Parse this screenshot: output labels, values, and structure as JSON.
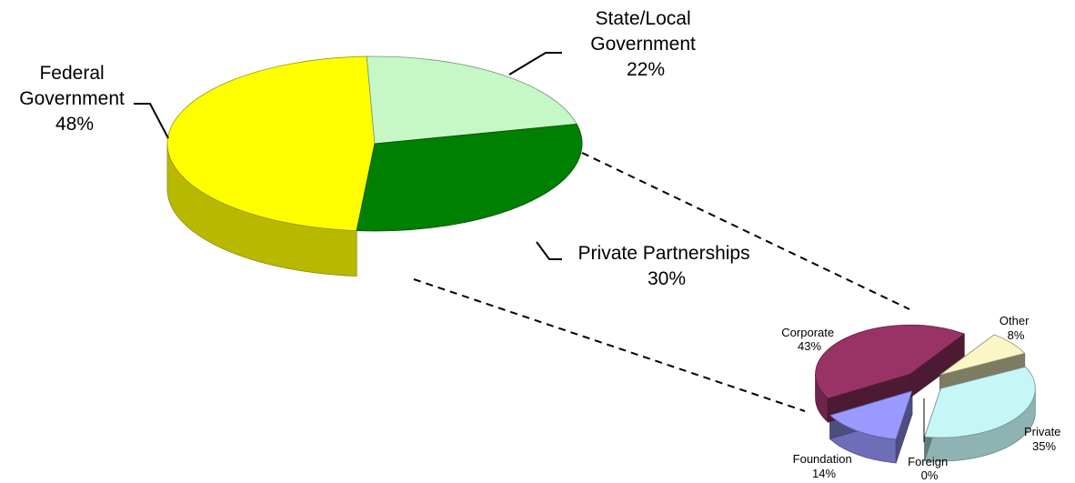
{
  "chart_data": [
    {
      "type": "pie",
      "categories": [
        "Federal Government",
        "State/Local Government",
        "Private Partnerships"
      ],
      "values": [
        48,
        22,
        30
      ],
      "labels": [
        {
          "lines": [
            "Federal",
            "Government"
          ],
          "pct": "48%"
        },
        {
          "lines": [
            "State/Local",
            "Government"
          ],
          "pct": "22%"
        },
        {
          "lines": [
            "Private Partnerships"
          ],
          "pct": "30%"
        }
      ],
      "colors": [
        "#ffff00",
        "#c6f7c6",
        "#008000"
      ],
      "exploded_slice": "Private Partnerships",
      "style": "3d"
    },
    {
      "type": "pie",
      "categories": [
        "Other",
        "Private",
        "Foreign",
        "Foundation",
        "Corporate"
      ],
      "values": [
        8,
        35,
        0,
        14,
        43
      ],
      "labels": [
        {
          "lines": [
            "Other"
          ],
          "pct": "8%"
        },
        {
          "lines": [
            "Private"
          ],
          "pct": "35%"
        },
        {
          "lines": [
            "Foreign"
          ],
          "pct": "0%"
        },
        {
          "lines": [
            "Foundation"
          ],
          "pct": "14%"
        },
        {
          "lines": [
            "Corporate"
          ],
          "pct": "43%"
        }
      ],
      "colors": [
        "#fbf6c6",
        "#c6f7f7",
        "#ffffff",
        "#9999ff",
        "#993366"
      ],
      "style": "3d-exploded"
    }
  ]
}
